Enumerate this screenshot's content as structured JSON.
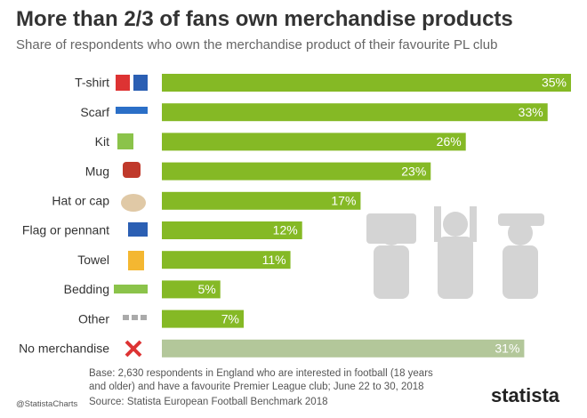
{
  "chart_data": {
    "type": "hbar",
    "title": "More than 2/3 of fans own merchandise products",
    "subtitle": "Share of respondents who own the merchandise product of their favourite PL club",
    "categories": [
      "T-shirt",
      "Scarf",
      "Kit",
      "Mug",
      "Hat or cap",
      "Flag or pennant",
      "Towel",
      "Bedding",
      "Other",
      "No merchandise"
    ],
    "values": [
      35,
      33,
      26,
      23,
      17,
      12,
      11,
      5,
      7,
      31
    ],
    "value_labels": [
      "35%",
      "33%",
      "26%",
      "23%",
      "17%",
      "12%",
      "11%",
      "5%",
      "7%",
      "31%"
    ],
    "colors": [
      "#85b925",
      "#85b925",
      "#85b925",
      "#85b925",
      "#85b925",
      "#85b925",
      "#85b925",
      "#85b925",
      "#85b925",
      "#b3c79a"
    ]
  },
  "footer": {
    "note": "Base: 2,630 respondents in England who are interested in football (18 years and older) and have a favourite Premier League club; June 22 to 30, 2018",
    "source": "Source: Statista European Football Benchmark 2018",
    "handle": "@StatistaCharts",
    "brand": "statista"
  }
}
